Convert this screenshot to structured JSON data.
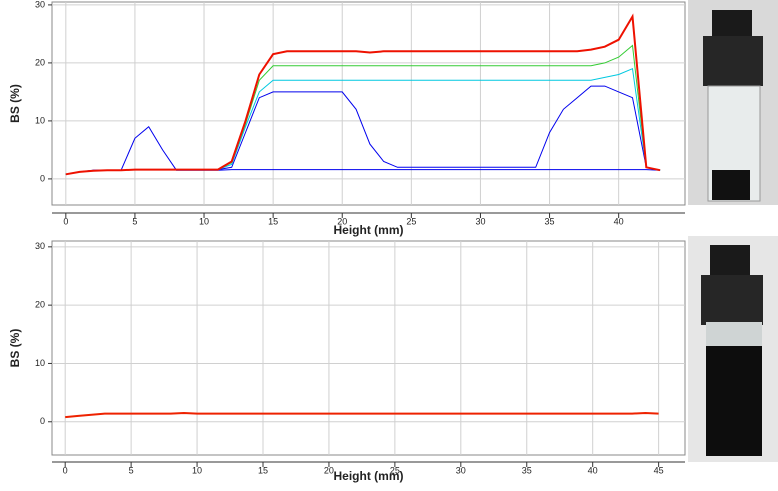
{
  "chart_data": [
    {
      "type": "line",
      "x_label": "Height (mm)",
      "y_label": "BS (%)",
      "xlim": [
        -1,
        44.8
      ],
      "ylim": [
        -4.5,
        30.5
      ],
      "xticks": [
        0,
        5,
        10,
        15,
        20,
        25,
        30,
        35,
        40
      ],
      "yticks": [
        0,
        10,
        20,
        30
      ],
      "grid": true,
      "x": [
        0,
        1,
        2,
        3,
        4,
        5,
        6,
        7,
        8,
        9,
        10,
        11,
        12,
        13,
        14,
        15,
        16,
        17,
        18,
        19,
        20,
        21,
        22,
        23,
        24,
        25,
        26,
        27,
        28,
        29,
        30,
        31,
        32,
        33,
        34,
        35,
        36,
        37,
        38,
        39,
        40,
        41,
        42,
        43
      ],
      "series": [
        {
          "color": "#0000ee",
          "values": [
            0.8,
            1.2,
            1.5,
            1.5,
            1.5,
            7,
            9,
            5,
            1.5,
            1.5,
            1.5,
            1.5,
            1.6,
            1.6,
            1.6,
            1.6,
            1.6,
            1.6,
            1.6,
            1.6,
            1.6,
            1.6,
            1.6,
            1.6,
            1.6,
            1.6,
            1.6,
            1.6,
            1.6,
            1.6,
            1.6,
            1.6,
            1.6,
            1.6,
            1.6,
            1.6,
            1.6,
            1.6,
            1.6,
            1.6,
            1.6,
            1.6,
            1.6,
            1.5
          ]
        },
        {
          "color": "#0000ee",
          "values": [
            0.8,
            1.2,
            1.5,
            1.5,
            1.5,
            1.6,
            1.6,
            1.6,
            1.6,
            1.6,
            1.6,
            1.6,
            2,
            8,
            14,
            15,
            15,
            15,
            15,
            15,
            15,
            12,
            6,
            3,
            2,
            2,
            2,
            2,
            2,
            2,
            2,
            2,
            2,
            2,
            2,
            8,
            12,
            14,
            16,
            16,
            15,
            14,
            2,
            1.5
          ]
        },
        {
          "color": "#00c8e0",
          "values": [
            0.8,
            1.2,
            1.4,
            1.5,
            1.5,
            1.6,
            1.6,
            1.6,
            1.6,
            1.6,
            1.6,
            1.6,
            2.5,
            9,
            15,
            17,
            17,
            17,
            17,
            17,
            17,
            17,
            17,
            17,
            17,
            17,
            17,
            17,
            17,
            17,
            17,
            17,
            17,
            17,
            17,
            17,
            17,
            17,
            17,
            17.5,
            18,
            19,
            2,
            1.5
          ]
        },
        {
          "color": "#33cc33",
          "values": [
            0.8,
            1.2,
            1.4,
            1.5,
            1.5,
            1.6,
            1.6,
            1.6,
            1.6,
            1.6,
            1.6,
            1.6,
            2.8,
            9.5,
            17,
            19.5,
            19.5,
            19.5,
            19.5,
            19.5,
            19.5,
            19.5,
            19.5,
            19.5,
            19.5,
            19.5,
            19.5,
            19.5,
            19.5,
            19.5,
            19.5,
            19.5,
            19.5,
            19.5,
            19.5,
            19.5,
            19.5,
            19.5,
            19.5,
            20,
            21,
            23,
            2,
            1.5
          ]
        },
        {
          "color": "#ee1100",
          "values": [
            0.8,
            1.2,
            1.4,
            1.5,
            1.5,
            1.6,
            1.6,
            1.6,
            1.6,
            1.6,
            1.6,
            1.6,
            3,
            10,
            18,
            21.5,
            22,
            22,
            22,
            22,
            22,
            22,
            21.8,
            22,
            22,
            22,
            22,
            22,
            22,
            22,
            22,
            22,
            22,
            22,
            22,
            22,
            22,
            22,
            22.3,
            22.8,
            24,
            28,
            2,
            1.5
          ]
        }
      ]
    },
    {
      "type": "line",
      "x_label": "Height (mm)",
      "y_label": "BS (%)",
      "xlim": [
        -1,
        47
      ],
      "ylim": [
        -5.7,
        31
      ],
      "xticks": [
        0,
        5,
        10,
        15,
        20,
        25,
        30,
        35,
        40,
        45
      ],
      "yticks": [
        0,
        10,
        20,
        30
      ],
      "grid": true,
      "x": [
        0,
        1,
        2,
        3,
        4,
        5,
        6,
        7,
        8,
        9,
        10,
        11,
        12,
        13,
        14,
        15,
        16,
        17,
        18,
        19,
        20,
        21,
        22,
        23,
        24,
        25,
        26,
        27,
        28,
        29,
        30,
        31,
        32,
        33,
        34,
        35,
        36,
        37,
        38,
        39,
        40,
        41,
        42,
        43,
        44,
        45
      ],
      "series": [
        {
          "color": "#ee2200",
          "values": [
            0.8,
            1.0,
            1.2,
            1.4,
            1.4,
            1.4,
            1.4,
            1.4,
            1.4,
            1.5,
            1.4,
            1.4,
            1.4,
            1.4,
            1.4,
            1.4,
            1.4,
            1.4,
            1.4,
            1.4,
            1.4,
            1.4,
            1.4,
            1.4,
            1.4,
            1.4,
            1.4,
            1.4,
            1.4,
            1.4,
            1.4,
            1.4,
            1.4,
            1.4,
            1.4,
            1.4,
            1.4,
            1.4,
            1.4,
            1.4,
            1.4,
            1.4,
            1.4,
            1.4,
            1.5,
            1.4
          ]
        }
      ]
    }
  ]
}
